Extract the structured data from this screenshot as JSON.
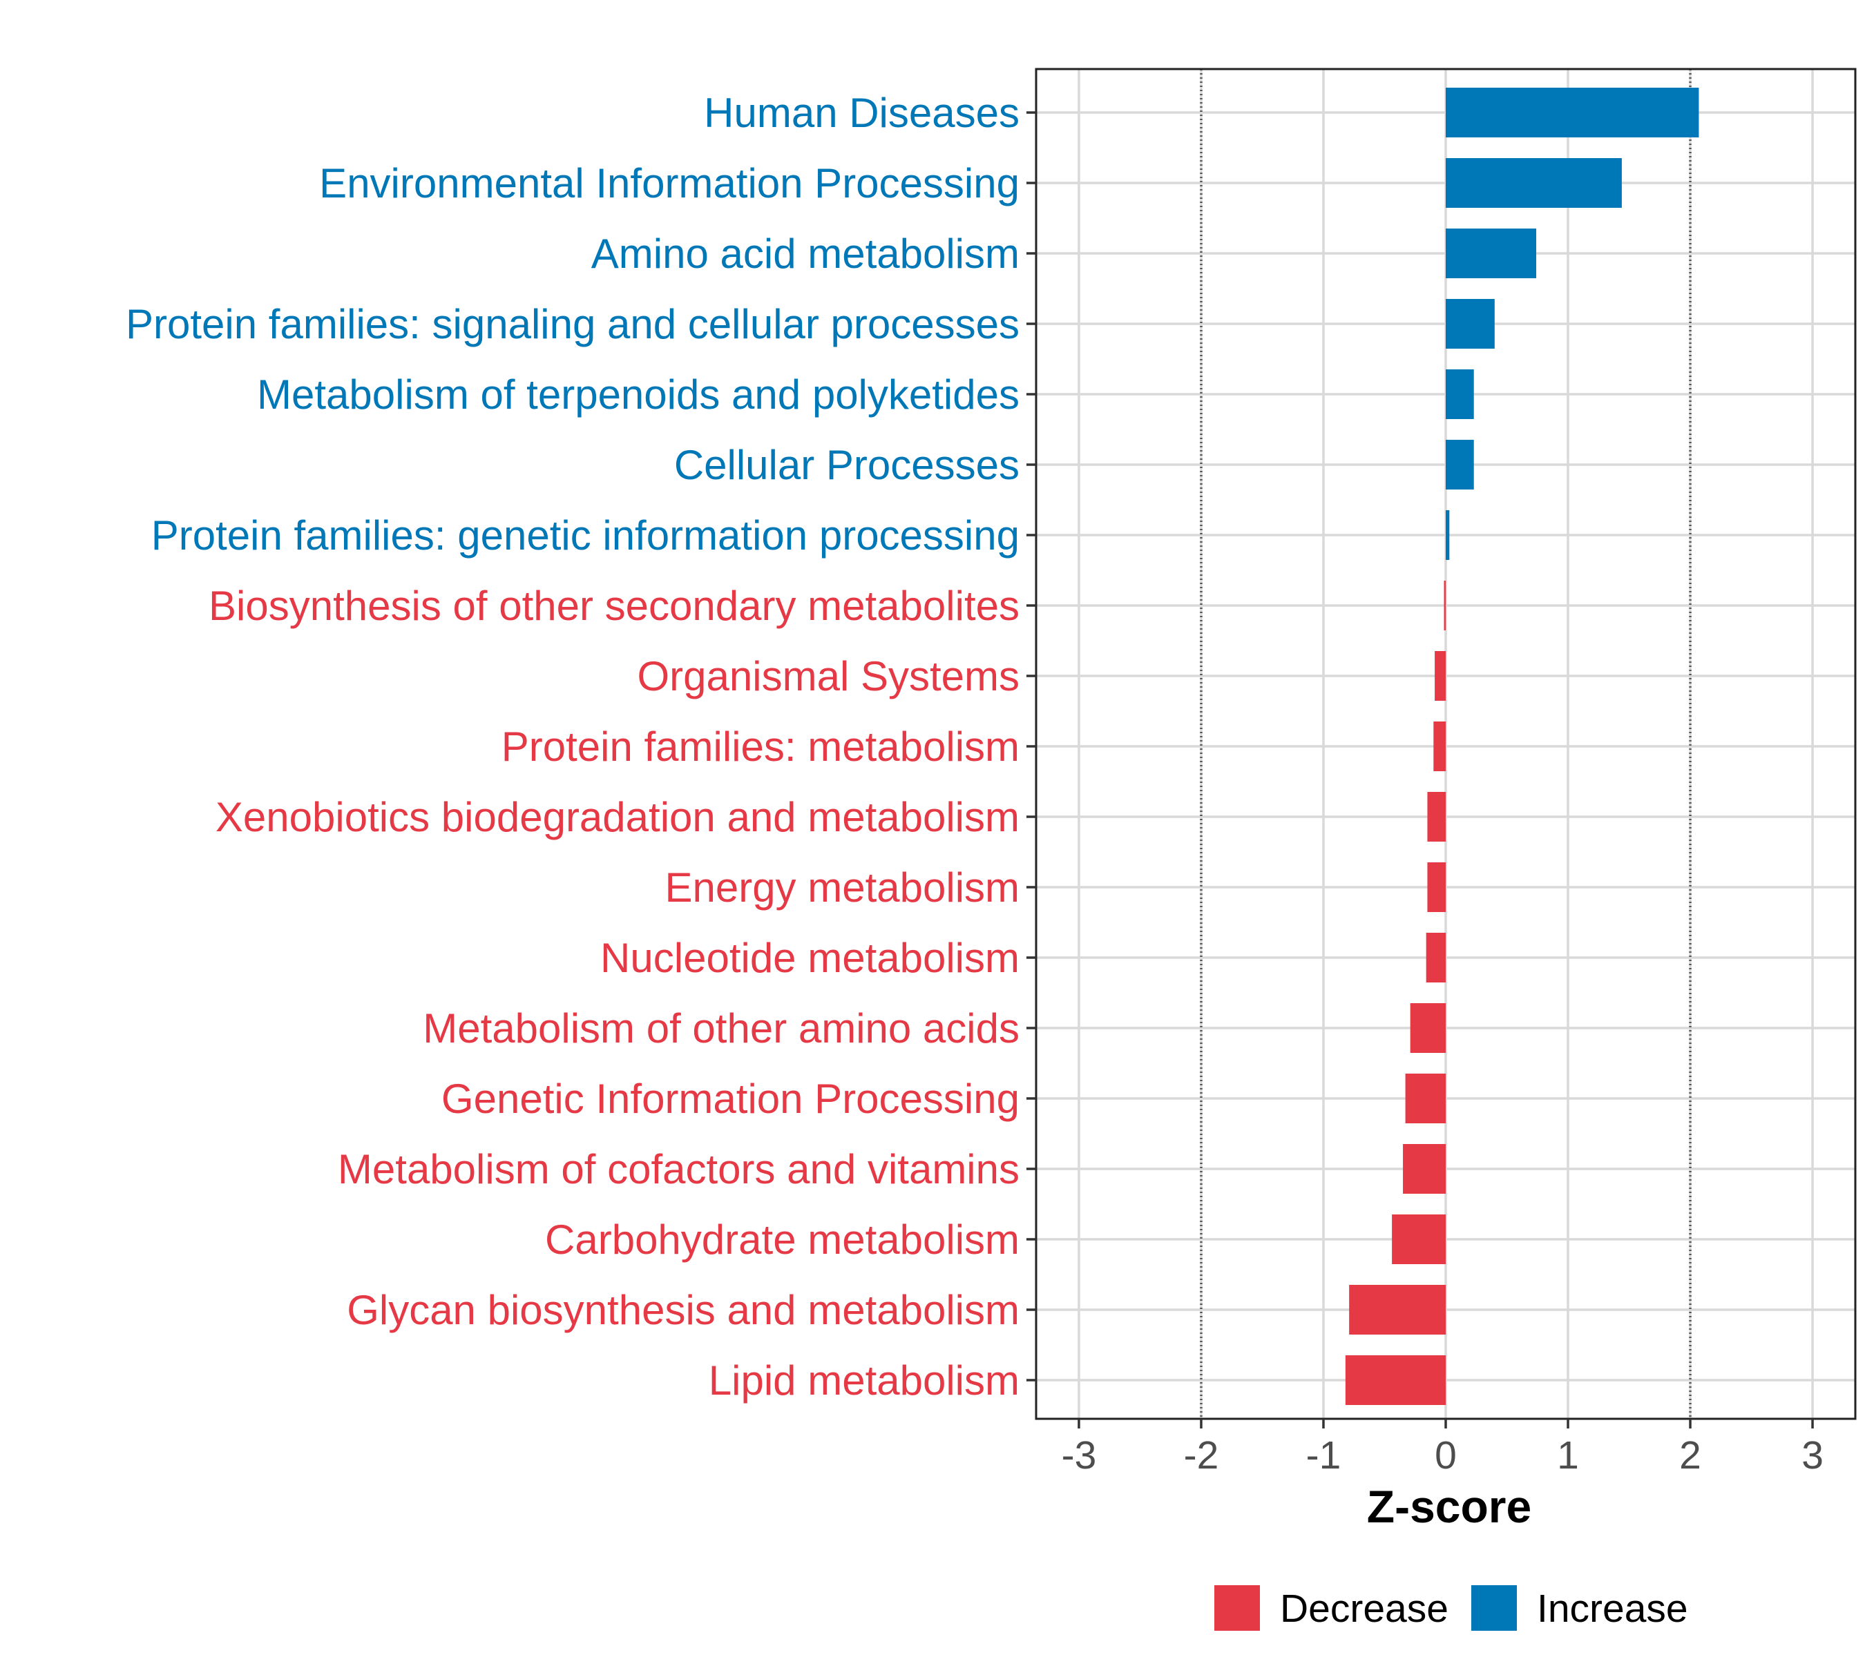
{
  "chart_data": {
    "type": "bar",
    "orientation": "horizontal",
    "title": "",
    "xlabel": "Z-score",
    "ylabel": "",
    "xlim": [
      -3.35,
      3.35
    ],
    "xticks": [
      -3,
      -2,
      -1,
      0,
      1,
      2,
      3
    ],
    "reference_lines": [
      -2,
      2
    ],
    "grid": true,
    "legend_position": "bottom",
    "colors": {
      "Decrease": "#E63946",
      "Increase": "#0077B6",
      "grid": "#d9d9d9",
      "reference": "#555555"
    },
    "legend": [
      {
        "label": "Decrease",
        "direction": "Decrease"
      },
      {
        "label": "Increase",
        "direction": "Increase"
      }
    ],
    "categories": [
      "Human Diseases",
      "Environmental Information Processing",
      "Amino acid metabolism",
      "Protein families: signaling and cellular processes",
      "Metabolism of terpenoids and polyketides",
      "Cellular Processes",
      "Protein families: genetic information processing",
      "Biosynthesis of other secondary metabolites",
      "Organismal Systems",
      "Protein families: metabolism",
      "Xenobiotics biodegradation and metabolism",
      "Energy metabolism",
      "Nucleotide metabolism",
      "Metabolism of other amino acids",
      "Genetic Information Processing",
      "Metabolism of cofactors and vitamins",
      "Carbohydrate metabolism",
      "Glycan biosynthesis and metabolism",
      "Lipid metabolism"
    ],
    "values": [
      2.07,
      1.44,
      0.74,
      0.4,
      0.23,
      0.23,
      0.03,
      -0.01,
      -0.09,
      -0.1,
      -0.15,
      -0.15,
      -0.16,
      -0.29,
      -0.33,
      -0.35,
      -0.44,
      -0.79,
      -0.82
    ],
    "directions": [
      "Increase",
      "Increase",
      "Increase",
      "Increase",
      "Increase",
      "Increase",
      "Increase",
      "Decrease",
      "Decrease",
      "Decrease",
      "Decrease",
      "Decrease",
      "Decrease",
      "Decrease",
      "Decrease",
      "Decrease",
      "Decrease",
      "Decrease",
      "Decrease"
    ]
  }
}
